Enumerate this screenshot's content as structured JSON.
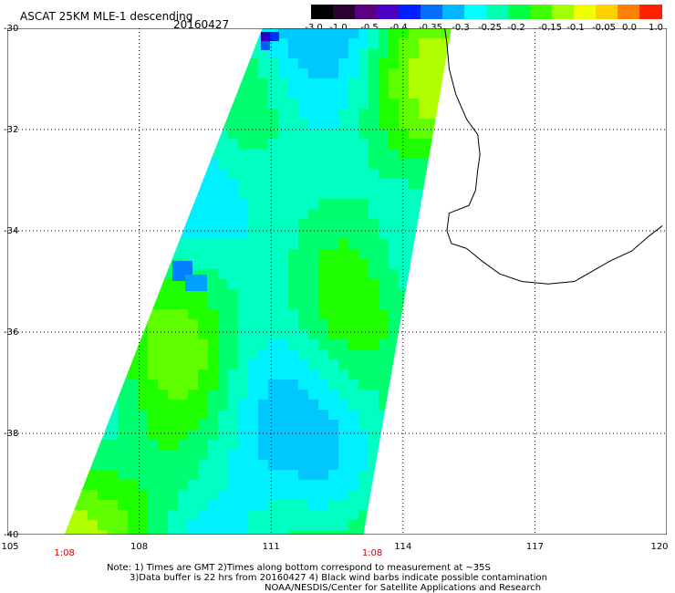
{
  "header": {
    "title": "ASCAT 25KM MLE-1 descending",
    "date": "20160427"
  },
  "colorbar": {
    "labels": [
      "-3.0",
      "-1.0",
      "-0.5",
      "-0.4",
      "-0.35",
      "-0.3",
      "-0.25",
      "-0.2",
      "-0.15",
      "-0.1",
      "-0.05",
      "0.0",
      "1.0"
    ],
    "colors": [
      "#000000",
      "#2a0030",
      "#5a0080",
      "#4b00c8",
      "#0020ff",
      "#0070ff",
      "#00b8ff",
      "#00ffff",
      "#00ffb0",
      "#00ff40",
      "#40ff00",
      "#a0ff00",
      "#f0ff00",
      "#ffd000",
      "#ff8000",
      "#ff2000"
    ]
  },
  "map": {
    "lat_labels": [
      "-30",
      "-32",
      "-34",
      "-36",
      "-38",
      "-40"
    ],
    "lon_labels": [
      "105",
      "108",
      "111",
      "114",
      "117",
      "120"
    ],
    "lat_range": [
      -40,
      -30
    ],
    "lon_range": [
      105,
      120
    ],
    "grid": true,
    "time_labels": [
      "1:08",
      "1:08"
    ],
    "time_label_lons": [
      106.3,
      113.3
    ],
    "swath_corners_lonlat": [
      [
        110.8,
        -30
      ],
      [
        115.1,
        -30
      ],
      [
        113.1,
        -40
      ],
      [
        106.3,
        -40
      ]
    ]
  },
  "notes": [
    "Note: 1) Times are GMT 2)Times along bottom correspond to measurement at ~35S",
    "3)Data buffer is 22 hrs from 20160427 4) Black wind barbs indicate possible contamination",
    "NOAA/NESDIS/Center for Satellite Applications and Research"
  ]
}
